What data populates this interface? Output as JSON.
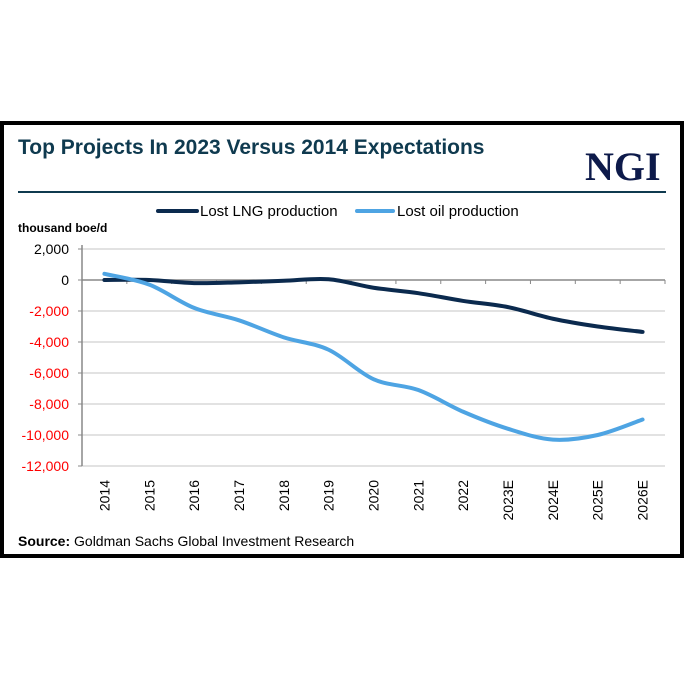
{
  "chart_data": {
    "type": "line",
    "title": "Top Projects In 2023 Versus 2014 Expectations",
    "ylabel": "thousand boe/d",
    "xlabel": "",
    "categories": [
      "2014",
      "2015",
      "2016",
      "2017",
      "2018",
      "2019",
      "2020",
      "2021",
      "2022",
      "2023E",
      "2024E",
      "2025E",
      "2026E"
    ],
    "series": [
      {
        "name": "Lost LNG production",
        "color": "#0b2a4e",
        "values": [
          0,
          0,
          -200,
          -150,
          -50,
          50,
          -500,
          -850,
          -1350,
          -1750,
          -2500,
          -3000,
          -3350
        ]
      },
      {
        "name": "Lost oil production",
        "color": "#4ea4e3",
        "values": [
          400,
          -300,
          -1800,
          -2600,
          -3700,
          -4500,
          -6400,
          -7100,
          -8500,
          -9600,
          -10300,
          -10000,
          -9000
        ]
      }
    ],
    "ylim": [
      -12000,
      2000
    ],
    "yticks": [
      2000,
      0,
      -2000,
      -4000,
      -6000,
      -8000,
      -10000,
      -12000
    ],
    "ytick_labels": [
      "2,000",
      "0",
      "-2,000",
      "-4,000",
      "-6,000",
      "-8,000",
      "-10,000",
      "-12,000"
    ],
    "negative_tick_color": "#ff0000",
    "grid": true,
    "legend": "top"
  },
  "logo": "NGI",
  "source_label": "Source:",
  "source_text": "Goldman Sachs Global Investment Research"
}
